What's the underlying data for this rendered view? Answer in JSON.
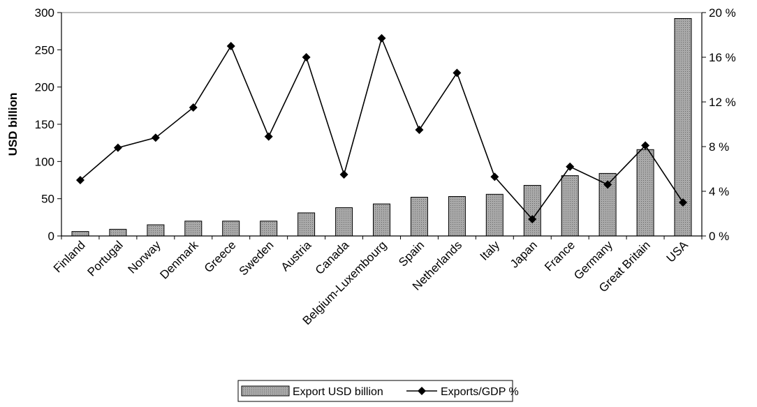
{
  "chart_data": {
    "type": "bar",
    "categories": [
      "Finland",
      "Portugal",
      "Norway",
      "Denmark",
      "Greece",
      "Sweden",
      "Austria",
      "Canada",
      "Belgium-Luxembourg",
      "Spain",
      "Netherlands",
      "Italy",
      "Japan",
      "France",
      "Germany",
      "Great Britain",
      "USA"
    ],
    "series": [
      {
        "name": "Export USD billion",
        "type": "bar",
        "axis": "left",
        "values": [
          6,
          9,
          15,
          20,
          20,
          20,
          31,
          38,
          43,
          52,
          53,
          56,
          68,
          81,
          84,
          116,
          292
        ]
      },
      {
        "name": "Exports/GDP %",
        "type": "line",
        "axis": "right",
        "values": [
          5.0,
          7.9,
          8.8,
          11.5,
          17.0,
          8.9,
          16.0,
          5.5,
          17.7,
          9.5,
          14.6,
          5.3,
          1.5,
          6.2,
          4.6,
          8.1,
          3.0
        ]
      }
    ],
    "ylabel": "USD billion",
    "ylim": [
      0,
      300
    ],
    "yticks": [
      "0",
      "50",
      "100",
      "150",
      "200",
      "250",
      "300"
    ],
    "y2lim": [
      0,
      20
    ],
    "y2ticks": [
      "0 %",
      "4 %",
      "8 %",
      "12 %",
      "16 %",
      "20 %"
    ],
    "legend_position": "bottom-center",
    "grid": false,
    "colors": {
      "bar": "#a9a9a9",
      "bar_edge": "#000000",
      "line": "#000000",
      "frame": "#7f7f7f"
    }
  }
}
